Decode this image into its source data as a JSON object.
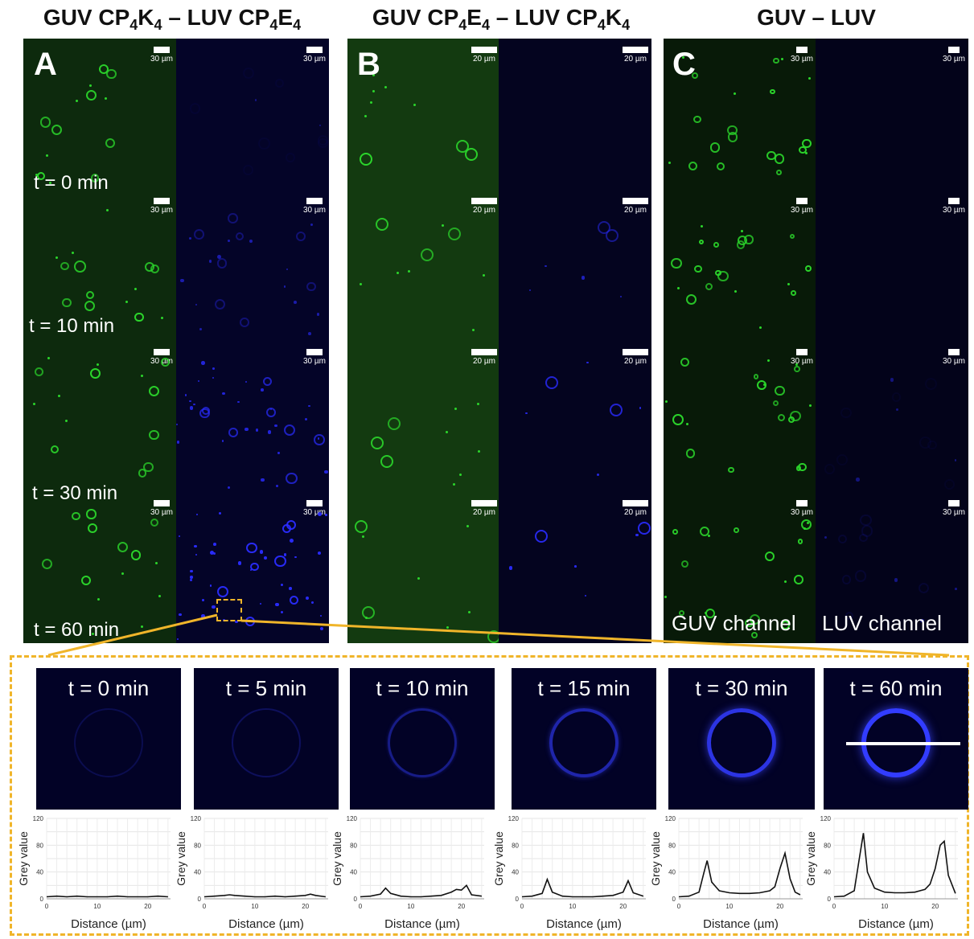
{
  "panel_titles": {
    "a": {
      "p1": "GUV CP",
      "s1": "4",
      "p2": "K",
      "s2": "4",
      "p3": " – LUV CP",
      "s3": "4",
      "p4": "E",
      "s4": "4"
    },
    "b": {
      "p1": "GUV CP",
      "s1": "4",
      "p2": "E",
      "s2": "4",
      "p3": " – LUV CP",
      "s3": "4",
      "p4": "K",
      "s4": "4"
    },
    "c": {
      "p1": "GUV – LUV"
    }
  },
  "panel_letters": {
    "a": "A",
    "b": "B",
    "c": "C"
  },
  "time_labels": [
    "t = 0 min",
    "t = 10 min",
    "t = 30 min",
    "t = 60 min"
  ],
  "scale_bars": {
    "a": "30 µm",
    "b": "20 µm",
    "c": "30 µm"
  },
  "channel_labels": {
    "guv": "GUV channel",
    "luv": "LUV channel"
  },
  "zoom": {
    "times": [
      "t = 0 min",
      "t = 5 min",
      "t = 10 min",
      "t = 15 min",
      "t = 30 min",
      "t = 60 min"
    ],
    "ring_brightness": [
      0.05,
      0.12,
      0.35,
      0.55,
      0.85,
      1.0
    ]
  },
  "colors": {
    "guv": "#2bd62b",
    "luv": "#2a2cff",
    "inset_border": "#f0b52a",
    "guv_bg": "#0d2a0d",
    "luv_bg": "#040428"
  },
  "chart_data": [
    {
      "type": "line",
      "xlabel": "Distance (µm)",
      "ylabel": "Grey value",
      "ylim": [
        0,
        120
      ],
      "xticks": [
        0,
        10,
        20
      ],
      "yticks": [
        0,
        40,
        80,
        120
      ],
      "x": [
        0,
        2,
        4,
        6,
        8,
        10,
        12,
        14,
        16,
        18,
        20,
        22,
        24
      ],
      "values": [
        3,
        4,
        3,
        4,
        3,
        3,
        3,
        4,
        3,
        3,
        3,
        4,
        3
      ]
    },
    {
      "type": "line",
      "xlabel": "Distance (µm)",
      "ylabel": "Grey value",
      "ylim": [
        0,
        120
      ],
      "xticks": [
        0,
        10,
        20
      ],
      "yticks": [
        0,
        40,
        80,
        120
      ],
      "x": [
        0,
        2,
        4,
        5,
        6,
        8,
        10,
        12,
        14,
        16,
        18,
        20,
        21,
        22,
        24
      ],
      "values": [
        3,
        4,
        5,
        6,
        5,
        4,
        3,
        3,
        4,
        3,
        4,
        5,
        7,
        5,
        3
      ]
    },
    {
      "type": "line",
      "xlabel": "Distance (µm)",
      "ylabel": "Grey value",
      "ylim": [
        0,
        120
      ],
      "xticks": [
        0,
        10,
        20
      ],
      "yticks": [
        0,
        40,
        80,
        120
      ],
      "x": [
        0,
        2,
        4,
        5,
        6,
        8,
        10,
        12,
        14,
        16,
        18,
        19,
        20,
        21,
        22,
        24
      ],
      "values": [
        3,
        4,
        7,
        16,
        8,
        4,
        3,
        3,
        4,
        5,
        10,
        14,
        13,
        20,
        6,
        4
      ]
    },
    {
      "type": "line",
      "xlabel": "Distance (µm)",
      "ylabel": "Grey value",
      "ylim": [
        0,
        120
      ],
      "xticks": [
        0,
        10,
        20
      ],
      "yticks": [
        0,
        40,
        80,
        120
      ],
      "x": [
        0,
        2,
        4,
        5,
        6,
        8,
        10,
        12,
        14,
        16,
        18,
        20,
        21,
        22,
        24
      ],
      "values": [
        3,
        4,
        8,
        29,
        10,
        4,
        3,
        3,
        3,
        4,
        5,
        10,
        27,
        9,
        4
      ]
    },
    {
      "type": "line",
      "xlabel": "Distance (µm)",
      "ylabel": "Grey value",
      "ylim": [
        0,
        120
      ],
      "xticks": [
        0,
        10,
        20
      ],
      "yticks": [
        0,
        40,
        80,
        120
      ],
      "x": [
        0,
        2,
        4,
        5,
        5.6,
        6.5,
        8,
        10,
        12,
        14,
        16,
        18,
        19,
        20,
        21,
        22,
        23,
        24
      ],
      "values": [
        3,
        4,
        10,
        40,
        57,
        25,
        12,
        9,
        8,
        8,
        9,
        12,
        18,
        45,
        68,
        30,
        10,
        6
      ]
    },
    {
      "type": "line",
      "xlabel": "Distance (µm)",
      "ylabel": "Grey value",
      "ylim": [
        0,
        120
      ],
      "xticks": [
        0,
        10,
        20
      ],
      "yticks": [
        0,
        40,
        80,
        120
      ],
      "x": [
        0,
        2,
        4,
        5,
        5.8,
        6.6,
        8,
        10,
        12,
        14,
        16,
        18,
        19,
        20,
        21,
        21.8,
        22.6,
        24
      ],
      "values": [
        3,
        4,
        12,
        60,
        98,
        40,
        16,
        10,
        9,
        9,
        10,
        14,
        22,
        45,
        80,
        86,
        35,
        8
      ]
    }
  ]
}
